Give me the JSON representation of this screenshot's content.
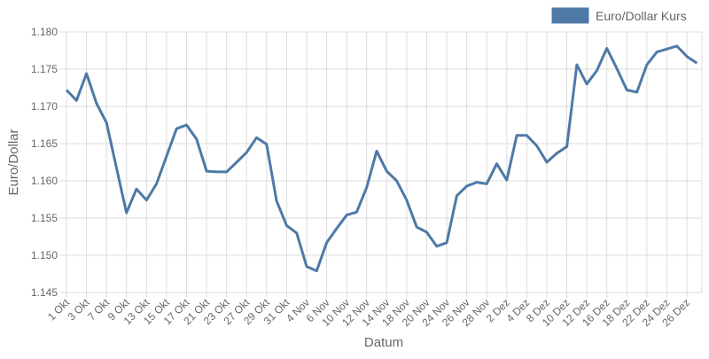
{
  "chart_data": {
    "type": "line",
    "title": "",
    "xlabel": "Datum",
    "ylabel": "Euro/Dollar",
    "ylim": [
      1.145,
      1.18
    ],
    "yticks": [
      "1.145",
      "1.150",
      "1.155",
      "1.160",
      "1.165",
      "1.170",
      "1.175",
      "1.180"
    ],
    "grid": true,
    "legend_position": "top-right",
    "x_tick_labels": [
      "1 Okt",
      "3 Okt",
      "7 Okt",
      "9 Okt",
      "13 Okt",
      "15 Okt",
      "17 Okt",
      "21 Okt",
      "23 Okt",
      "27 Okt",
      "29 Okt",
      "31 Okt",
      "4 Nov",
      "6 Nov",
      "10 Nov",
      "12 Nov",
      "14 Nov",
      "18 Nov",
      "20 Nov",
      "24 Nov",
      "26 Nov",
      "28 Nov",
      "2 Dez",
      "4 Dez",
      "8 Dez",
      "10 Dez",
      "12 Dez",
      "16 Dez",
      "18 Dez",
      "22 Dez",
      "24 Dez",
      "26 Dez"
    ],
    "series": [
      {
        "name": "Euro/Dollar Kurs",
        "color": "#4e79a7",
        "values": [
          1.1722,
          1.1708,
          1.1744,
          1.1704,
          1.1678,
          1.1617,
          1.1557,
          1.1589,
          1.1574,
          1.1596,
          1.1633,
          1.167,
          1.1675,
          1.1656,
          1.1613,
          1.1612,
          1.1612,
          1.1625,
          1.1638,
          1.1658,
          1.1649,
          1.1573,
          1.154,
          1.153,
          1.1485,
          1.1479,
          1.1517,
          1.1536,
          1.1554,
          1.1558,
          1.1591,
          1.164,
          1.1613,
          1.16,
          1.1574,
          1.1538,
          1.1531,
          1.1512,
          1.1517,
          1.158,
          1.1593,
          1.1598,
          1.1596,
          1.1623,
          1.1601,
          1.1661,
          1.1661,
          1.1647,
          1.1625,
          1.1637,
          1.1646,
          1.1756,
          1.173,
          1.1748,
          1.1778,
          1.1751,
          1.1722,
          1.1719,
          1.1756,
          1.1773,
          1.1777,
          1.1781,
          1.1767,
          1.1758
        ]
      }
    ]
  }
}
